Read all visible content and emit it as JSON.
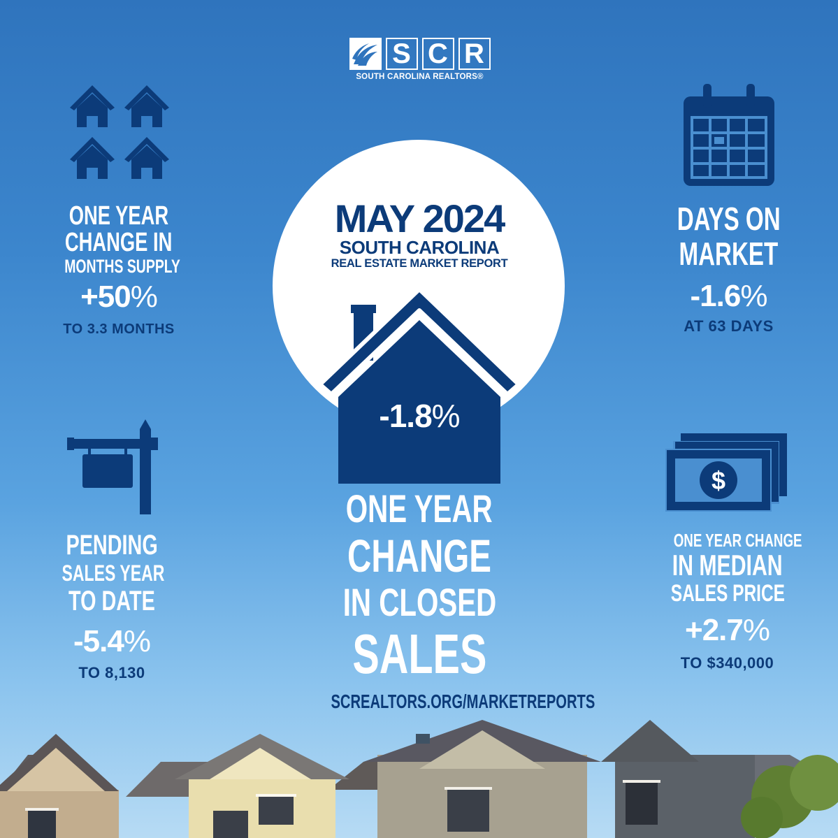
{
  "logo": {
    "letters": [
      "S",
      "C",
      "R"
    ],
    "tagline": "SOUTH CAROLINA REALTORS®",
    "mark_icon": "palmetto-wave-icon"
  },
  "center": {
    "title_main": "MAY 2024",
    "title_state": "SOUTH CAROLINA",
    "title_report": "REAL ESTATE MARKET REPORT",
    "stat_value": "-1.8",
    "stat_unit": "%",
    "label_lines": [
      "ONE YEAR",
      "CHANGE",
      "IN CLOSED",
      "SALES"
    ],
    "url": "SCREALTORS.ORG/MARKETREPORTS",
    "icon": "house-icon"
  },
  "months_supply": {
    "icon": "four-houses-icon",
    "label_lines": [
      "ONE YEAR",
      "CHANGE IN",
      "MONTHS SUPPLY"
    ],
    "stat_value": "+50",
    "stat_unit": "%",
    "sub": "TO 3.3 MONTHS"
  },
  "days_on_market": {
    "icon": "calendar-icon",
    "label_lines": [
      "DAYS ON",
      "MARKET"
    ],
    "stat_value": "-1.6",
    "stat_unit": "%",
    "sub": "AT 63 DAYS"
  },
  "pending_sales": {
    "icon": "for-sale-sign-icon",
    "label_lines": [
      "PENDING",
      "SALES YEAR",
      "TO DATE"
    ],
    "stat_value": "-5.4",
    "stat_unit": "%",
    "sub": "TO 8,130"
  },
  "median_price": {
    "icon": "money-bills-icon",
    "label_lines": [
      "ONE YEAR CHANGE",
      "IN MEDIAN",
      "SALES PRICE"
    ],
    "stat_value": "+2.7",
    "stat_unit": "%",
    "sub": "TO $340,000",
    "currency_symbol": "$"
  },
  "colors": {
    "navy": "#0c3b79",
    "white": "#ffffff",
    "sky_top": "#2f74bd",
    "sky_bottom": "#b7dbf4"
  }
}
